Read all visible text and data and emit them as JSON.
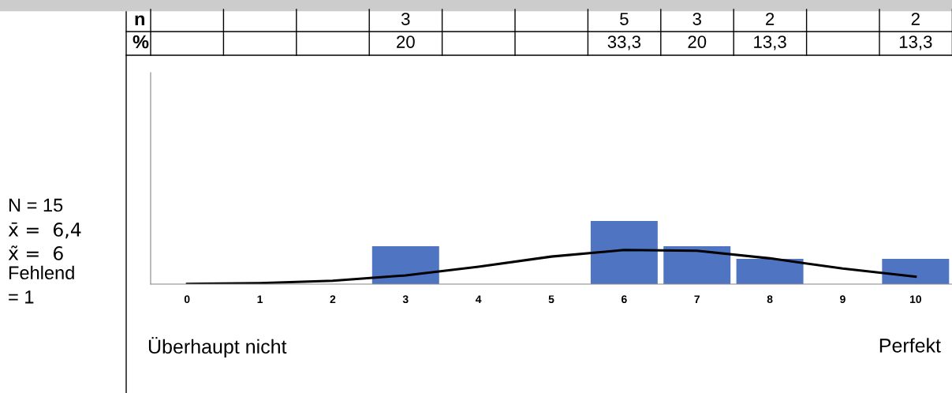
{
  "chart_data": {
    "type": "bar",
    "categories": [
      "0",
      "1",
      "2",
      "3",
      "4",
      "5",
      "6",
      "7",
      "8",
      "9",
      "10"
    ],
    "values": [
      null,
      null,
      null,
      3,
      null,
      null,
      5,
      3,
      2,
      null,
      2
    ],
    "value_labels": [
      null,
      null,
      null,
      "3",
      null,
      null,
      "5",
      "3",
      "2",
      null,
      "2"
    ],
    "color": "#4f74c2",
    "series": [
      {
        "type": "line",
        "color": "#000000",
        "values": [
          0.02,
          0.08,
          0.26,
          0.69,
          1.38,
          2.18,
          2.7,
          2.64,
          2.04,
          1.23,
          0.59
        ]
      }
    ],
    "ylim": [
      0,
      16.75
    ],
    "tick_labels": "x",
    "grid": false,
    "legend": false,
    "annotations": [
      "n",
      "%",
      "N = 15",
      "x̄ =  6,4",
      "x̃ =  6",
      "Fehlend\n= 1",
      "Überhaupt nicht",
      "Perfekt",
      "20",
      "33,3",
      "20",
      "13,3",
      "13,3"
    ]
  }
}
